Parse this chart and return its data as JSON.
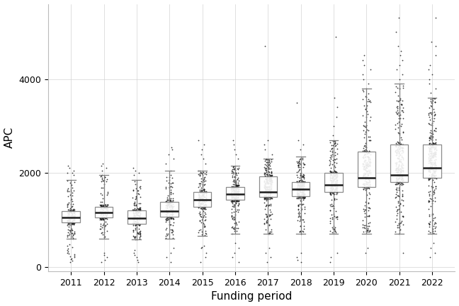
{
  "years": [
    2011,
    2012,
    2013,
    2014,
    2015,
    2016,
    2017,
    2018,
    2019,
    2020,
    2021,
    2022
  ],
  "box_stats": {
    "2011": {
      "q1": 950,
      "median": 1050,
      "q3": 1180,
      "whislo": 600,
      "whishi": 1850
    },
    "2012": {
      "q1": 1050,
      "median": 1150,
      "q3": 1280,
      "whislo": 600,
      "whishi": 1950
    },
    "2013": {
      "q1": 920,
      "median": 1040,
      "q3": 1200,
      "whislo": 580,
      "whishi": 1850
    },
    "2014": {
      "q1": 1060,
      "median": 1190,
      "q3": 1380,
      "whislo": 600,
      "whishi": 2050
    },
    "2015": {
      "q1": 1280,
      "median": 1430,
      "q3": 1600,
      "whislo": 650,
      "whishi": 2050
    },
    "2016": {
      "q1": 1430,
      "median": 1550,
      "q3": 1700,
      "whislo": 700,
      "whishi": 2150
    },
    "2017": {
      "q1": 1490,
      "median": 1600,
      "q3": 1920,
      "whislo": 700,
      "whishi": 2300
    },
    "2018": {
      "q1": 1500,
      "median": 1650,
      "q3": 1800,
      "whislo": 700,
      "whishi": 2350
    },
    "2019": {
      "q1": 1600,
      "median": 1750,
      "q3": 2000,
      "whislo": 700,
      "whishi": 2700
    },
    "2020": {
      "q1": 1700,
      "median": 1900,
      "q3": 2450,
      "whislo": 700,
      "whishi": 3800
    },
    "2021": {
      "q1": 1800,
      "median": 1950,
      "q3": 2600,
      "whislo": 700,
      "whishi": 3900
    },
    "2022": {
      "q1": 1900,
      "median": 2100,
      "q3": 2600,
      "whislo": 700,
      "whishi": 3600
    }
  },
  "n_points": {
    "2011": 180,
    "2012": 150,
    "2013": 200,
    "2014": 180,
    "2015": 220,
    "2016": 280,
    "2017": 300,
    "2018": 280,
    "2019": 250,
    "2020": 280,
    "2021": 320,
    "2022": 350
  },
  "outliers": {
    "2011": [
      100,
      130,
      160,
      180,
      200,
      220,
      240,
      260,
      280,
      300,
      330,
      360,
      390,
      420,
      450,
      480,
      1950,
      2000,
      2050,
      2100,
      2150,
      2000
    ],
    "2012": [
      100,
      150,
      200,
      250,
      300,
      2050,
      2100,
      2150,
      2200
    ],
    "2013": [
      100,
      150,
      200,
      250,
      300,
      350,
      1950,
      2000,
      2050,
      2100
    ],
    "2014": [
      100,
      200,
      300,
      400,
      2200,
      2300,
      2400,
      2500,
      2550
    ],
    "2015": [
      100,
      200,
      300,
      400,
      420,
      450,
      2200,
      2300,
      2400,
      2500,
      2600,
      2700
    ],
    "2016": [
      100,
      200,
      300,
      400,
      500,
      2300,
      2400,
      2500,
      2600,
      2700
    ],
    "2017": [
      100,
      200,
      300,
      400,
      2400,
      2500,
      2600,
      2700,
      4700
    ],
    "2018": [
      100,
      150,
      200,
      300,
      2500,
      2600,
      2700,
      3500
    ],
    "2019": [
      100,
      200,
      300,
      2800,
      3000,
      3200,
      3400,
      3600,
      4900
    ],
    "2020": [
      300,
      400,
      3900,
      4000,
      4100,
      4200,
      4300,
      4400,
      4500
    ],
    "2021": [
      300,
      4000,
      4100,
      4200,
      4300,
      4400,
      4500,
      4600,
      4700,
      5000,
      5300
    ],
    "2022": [
      200,
      300,
      400,
      500,
      3700,
      3800,
      3900,
      4000,
      4100,
      4200,
      4300,
      4500,
      4700,
      4800,
      5300
    ]
  },
  "title": "",
  "xlabel": "Funding period",
  "ylabel": "APC",
  "ylim": [
    -100,
    5600
  ],
  "yticks": [
    0,
    2000,
    4000
  ],
  "ytick_labels": [
    "0",
    "2000",
    "4000"
  ],
  "background_color": "#ffffff",
  "grid_color": "#d3d3d3",
  "box_color": "#ffffff",
  "box_edge_color": "#7f7f7f",
  "median_color": "#1a1a1a",
  "whisker_color": "#7f7f7f",
  "flier_color": "#1a1a1a",
  "box_width": 0.55,
  "dot_size": 1.6,
  "dot_jitter": 0.12
}
